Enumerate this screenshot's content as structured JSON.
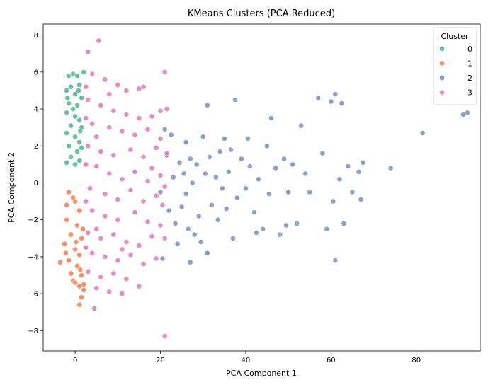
{
  "chart_data": {
    "type": "scatter",
    "title": "KMeans Clusters (PCA Reduced)",
    "xlabel": "PCA Component 1",
    "ylabel": "PCA Component 2",
    "xlim": [
      -7.5,
      95
    ],
    "ylim": [
      -9.1,
      8.6
    ],
    "xticks": [
      "0",
      "20",
      "40",
      "60",
      "80"
    ],
    "yticks": [
      "8",
      "6",
      "4",
      "2",
      "0",
      "−2",
      "−4",
      "−6",
      "−8"
    ],
    "xtick_values": [
      0,
      20,
      40,
      60,
      80
    ],
    "ytick_values": [
      8,
      6,
      4,
      2,
      0,
      -2,
      -4,
      -6,
      -8
    ],
    "legend": {
      "title": "Cluster",
      "placement": "top-right",
      "entries": [
        "0",
        "1",
        "2",
        "3"
      ]
    },
    "colors": [
      "#66c2a5",
      "#fc8d62",
      "#8da0cb",
      "#e78ac3"
    ],
    "series": [
      {
        "name": "0",
        "points": [
          [
            -1.5,
            5.8
          ],
          [
            -0.5,
            5.9
          ],
          [
            0.5,
            5.8
          ],
          [
            2,
            6.0
          ],
          [
            -1,
            5.2
          ],
          [
            1,
            5.3
          ],
          [
            -2,
            5.0
          ],
          [
            0,
            4.8
          ],
          [
            1.5,
            4.6
          ],
          [
            -1.5,
            4.3
          ],
          [
            0.5,
            4.2
          ],
          [
            -2,
            3.8
          ],
          [
            0,
            3.6
          ],
          [
            1,
            3.4
          ],
          [
            -1,
            3.1
          ],
          [
            1.5,
            3.0
          ],
          [
            -2,
            2.7
          ],
          [
            0,
            2.5
          ],
          [
            1,
            2.2
          ],
          [
            -1.5,
            2.0
          ],
          [
            0.5,
            1.7
          ],
          [
            -1,
            1.4
          ],
          [
            1,
            1.2
          ],
          [
            0,
            1.0
          ],
          [
            -2,
            1.1
          ],
          [
            1.5,
            1.9
          ],
          [
            -0.5,
            4.0
          ],
          [
            0.8,
            5.0
          ],
          [
            -1.8,
            4.6
          ],
          [
            1.2,
            2.8
          ]
        ]
      },
      {
        "name": "1",
        "points": [
          [
            -1.5,
            -0.5
          ],
          [
            0,
            -1.0
          ],
          [
            1,
            -1.5
          ],
          [
            -2,
            -2.0
          ],
          [
            0.5,
            -2.3
          ],
          [
            -1,
            -2.8
          ],
          [
            1.5,
            -3.0
          ],
          [
            -2.5,
            -3.3
          ],
          [
            0,
            -3.6
          ],
          [
            1,
            -3.9
          ],
          [
            -1.5,
            -4.2
          ],
          [
            -3.5,
            -4.3
          ],
          [
            0.5,
            -4.5
          ],
          [
            -1,
            -4.9
          ],
          [
            1.5,
            -5.0
          ],
          [
            -0.5,
            -5.3
          ],
          [
            1,
            -5.6
          ],
          [
            0,
            -5.4
          ],
          [
            2,
            -5.8
          ],
          [
            1.5,
            -6.2
          ],
          [
            1,
            -6.6
          ],
          [
            2,
            -5.5
          ],
          [
            -2,
            -1.2
          ],
          [
            1.8,
            -2.5
          ],
          [
            -0.5,
            -0.8
          ],
          [
            0.2,
            -3.2
          ],
          [
            -2.2,
            -3.8
          ],
          [
            1.2,
            -4.7
          ]
        ]
      },
      {
        "name": "2",
        "points": [
          [
            20,
            -0.5
          ],
          [
            20.5,
            -4.1
          ],
          [
            21,
            2.9
          ],
          [
            21.5,
            1.5
          ],
          [
            22,
            -1.5
          ],
          [
            22.5,
            2.6
          ],
          [
            23,
            0.3
          ],
          [
            23.5,
            -2.2
          ],
          [
            24,
            -3.3
          ],
          [
            24.5,
            1.1
          ],
          [
            25,
            -1.3
          ],
          [
            25.5,
            0.5
          ],
          [
            26,
            2.2
          ],
          [
            26,
            -0.6
          ],
          [
            26.5,
            -2.5
          ],
          [
            27,
            1.3
          ],
          [
            27,
            -4.3
          ],
          [
            27.5,
            0.0
          ],
          [
            28,
            -2.8
          ],
          [
            28.5,
            1.0
          ],
          [
            29,
            -1.8
          ],
          [
            29.5,
            -3.2
          ],
          [
            30,
            2.5
          ],
          [
            30.5,
            0.5
          ],
          [
            31,
            -3.8
          ],
          [
            31,
            4.2
          ],
          [
            31.5,
            1.4
          ],
          [
            32,
            -1.2
          ],
          [
            33,
            0.3
          ],
          [
            33.5,
            -2.0
          ],
          [
            34,
            1.7
          ],
          [
            34.5,
            -0.3
          ],
          [
            35,
            2.4
          ],
          [
            35.5,
            -1.4
          ],
          [
            36,
            0.6
          ],
          [
            36.5,
            1.8
          ],
          [
            37,
            -3.0
          ],
          [
            37.5,
            4.5
          ],
          [
            38,
            -0.8
          ],
          [
            39,
            1.3
          ],
          [
            40,
            -0.3
          ],
          [
            40.5,
            2.4
          ],
          [
            41,
            0.9
          ],
          [
            42,
            -1.6
          ],
          [
            42.5,
            -2.7
          ],
          [
            43,
            0.2
          ],
          [
            44,
            -2.5
          ],
          [
            45,
            2.0
          ],
          [
            45.5,
            -0.6
          ],
          [
            46,
            3.5
          ],
          [
            47,
            0.8
          ],
          [
            48,
            -2.8
          ],
          [
            49,
            1.3
          ],
          [
            49.5,
            -2.3
          ],
          [
            50,
            -0.5
          ],
          [
            51,
            1.0
          ],
          [
            52,
            -2.2
          ],
          [
            53,
            3.1
          ],
          [
            54,
            0.5
          ],
          [
            55,
            -0.5
          ],
          [
            57,
            4.6
          ],
          [
            58,
            1.6
          ],
          [
            59,
            -2.5
          ],
          [
            60,
            4.4
          ],
          [
            60.5,
            -1.0
          ],
          [
            61,
            4.8
          ],
          [
            61,
            -4.2
          ],
          [
            62,
            0.2
          ],
          [
            62.5,
            4.3
          ],
          [
            63,
            -2.2
          ],
          [
            64,
            0.9
          ],
          [
            65,
            -0.5
          ],
          [
            66.5,
            0.6
          ],
          [
            67,
            -0.9
          ],
          [
            67.5,
            1.1
          ],
          [
            74,
            0.8
          ],
          [
            81.5,
            2.7
          ],
          [
            91,
            3.7
          ],
          [
            92,
            3.8
          ]
        ]
      },
      {
        "name": "3",
        "points": [
          [
            2.5,
            5.2
          ],
          [
            3,
            7.1
          ],
          [
            5.5,
            7.7
          ],
          [
            4,
            5.9
          ],
          [
            7,
            5.6
          ],
          [
            10,
            5.3
          ],
          [
            12,
            5.0
          ],
          [
            15,
            5.1
          ],
          [
            16,
            5.2
          ],
          [
            21,
            6.0
          ],
          [
            3,
            4.5
          ],
          [
            6,
            4.2
          ],
          [
            9,
            3.9
          ],
          [
            12,
            3.7
          ],
          [
            15,
            3.5
          ],
          [
            18,
            3.6
          ],
          [
            20,
            3.9
          ],
          [
            21.5,
            4.0
          ],
          [
            4,
            3.2
          ],
          [
            8,
            3.0
          ],
          [
            11,
            2.8
          ],
          [
            14,
            2.6
          ],
          [
            17,
            2.9
          ],
          [
            20,
            2.4
          ],
          [
            3,
            2.0
          ],
          [
            6,
            1.7
          ],
          [
            9,
            1.5
          ],
          [
            13,
            1.8
          ],
          [
            16,
            1.4
          ],
          [
            19,
            1.9
          ],
          [
            21.5,
            1.6
          ],
          [
            5,
            0.9
          ],
          [
            8,
            0.5
          ],
          [
            11,
            0.2
          ],
          [
            14,
            0.6
          ],
          [
            17,
            0.1
          ],
          [
            20,
            0.4
          ],
          [
            3.5,
            -0.3
          ],
          [
            7,
            -0.6
          ],
          [
            10,
            -0.9
          ],
          [
            13,
            -0.4
          ],
          [
            16,
            -1.0
          ],
          [
            19,
            -0.7
          ],
          [
            21,
            -0.2
          ],
          [
            4,
            -1.5
          ],
          [
            7,
            -1.8
          ],
          [
            10,
            -2.0
          ],
          [
            14,
            -1.6
          ],
          [
            17,
            -2.1
          ],
          [
            20,
            -2.3
          ],
          [
            3,
            -2.7
          ],
          [
            6,
            -3.0
          ],
          [
            9,
            -2.8
          ],
          [
            12,
            -3.2
          ],
          [
            15,
            -3.4
          ],
          [
            18,
            -2.9
          ],
          [
            21,
            -3.0
          ],
          [
            4,
            -3.8
          ],
          [
            7,
            -4.0
          ],
          [
            10,
            -4.2
          ],
          [
            13,
            -3.9
          ],
          [
            16,
            -4.4
          ],
          [
            19,
            -4.1
          ],
          [
            3,
            -4.8
          ],
          [
            6,
            -5.1
          ],
          [
            9,
            -4.9
          ],
          [
            12,
            -5.2
          ],
          [
            15,
            -5.6
          ],
          [
            5,
            -5.7
          ],
          [
            8,
            -5.9
          ],
          [
            11,
            -6.0
          ],
          [
            4.5,
            -6.8
          ],
          [
            21,
            -8.3
          ],
          [
            2.5,
            -1.0
          ],
          [
            2.5,
            1.0
          ],
          [
            2.5,
            3.5
          ],
          [
            2.5,
            -3.5
          ],
          [
            5,
            2.5
          ],
          [
            5,
            -2.5
          ],
          [
            8,
            4.8
          ],
          [
            11,
            -3.6
          ],
          [
            18,
            0.8
          ],
          [
            20.5,
            -1.2
          ]
        ]
      }
    ]
  }
}
